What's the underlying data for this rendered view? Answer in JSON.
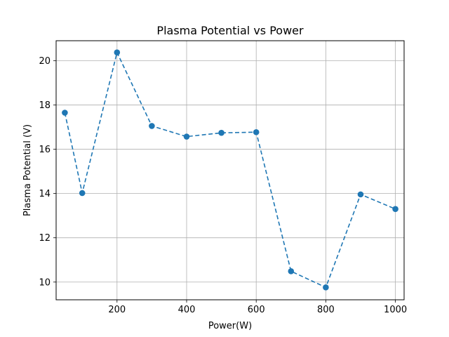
{
  "chart_data": {
    "type": "line",
    "title": "Plasma Potential vs Power",
    "xlabel": "Power(W)",
    "ylabel": "Plasma Potential (V)",
    "xlim": [
      25,
      1025
    ],
    "ylim": [
      9.2,
      20.9
    ],
    "xticks": [
      200,
      400,
      600,
      800,
      1000
    ],
    "yticks": [
      10,
      12,
      14,
      16,
      18,
      20
    ],
    "grid": true,
    "line_style": "dashed",
    "marker": "circle",
    "series": [
      {
        "color": "#1f77b4",
        "x": [
          50,
          100,
          200,
          300,
          400,
          500,
          600,
          700,
          800,
          900,
          1000
        ],
        "y": [
          17.65,
          14.02,
          20.37,
          17.05,
          16.57,
          16.74,
          16.77,
          10.49,
          9.76,
          13.96,
          13.3
        ]
      }
    ]
  }
}
